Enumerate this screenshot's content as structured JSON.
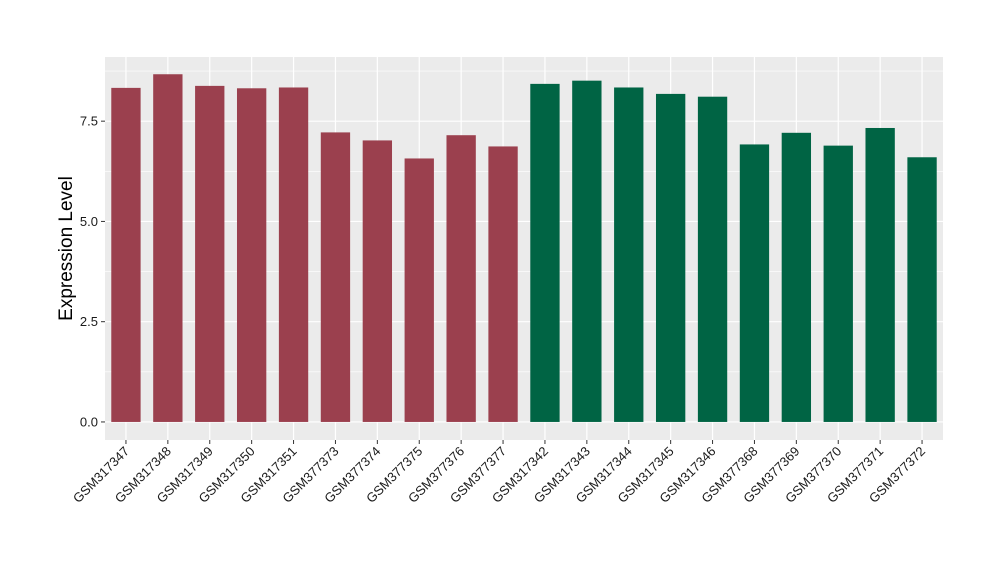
{
  "chart_data": {
    "type": "bar",
    "title": "",
    "xlabel": "",
    "ylabel": "Expression Level",
    "ylim": [
      -0.45,
      9.1
    ],
    "yticks": [
      0.0,
      2.5,
      5.0,
      7.5
    ],
    "ytick_labels": [
      "0.0",
      "2.5",
      "5.0",
      "7.5"
    ],
    "grid": true,
    "legend": "none",
    "categories": [
      "GSM317347",
      "GSM317348",
      "GSM317349",
      "GSM317350",
      "GSM317351",
      "GSM377373",
      "GSM377374",
      "GSM377375",
      "GSM377376",
      "GSM377377",
      "GSM317342",
      "GSM317343",
      "GSM317344",
      "GSM317345",
      "GSM317346",
      "GSM377368",
      "GSM377369",
      "GSM377370",
      "GSM377371",
      "GSM377372"
    ],
    "values": [
      8.33,
      8.67,
      8.38,
      8.32,
      8.34,
      7.22,
      7.02,
      6.57,
      7.15,
      6.87,
      8.43,
      8.51,
      8.34,
      8.18,
      8.11,
      6.92,
      7.21,
      6.89,
      7.33,
      6.6
    ],
    "bar_colors": [
      "#9b404e",
      "#9b404e",
      "#9b404e",
      "#9b404e",
      "#9b404e",
      "#9b404e",
      "#9b404e",
      "#9b404e",
      "#9b404e",
      "#9b404e",
      "#006444",
      "#006444",
      "#006444",
      "#006444",
      "#006444",
      "#006444",
      "#006444",
      "#006444",
      "#006444",
      "#006444"
    ],
    "panel_background": "#ebebeb",
    "grid_color": "#ffffff"
  }
}
